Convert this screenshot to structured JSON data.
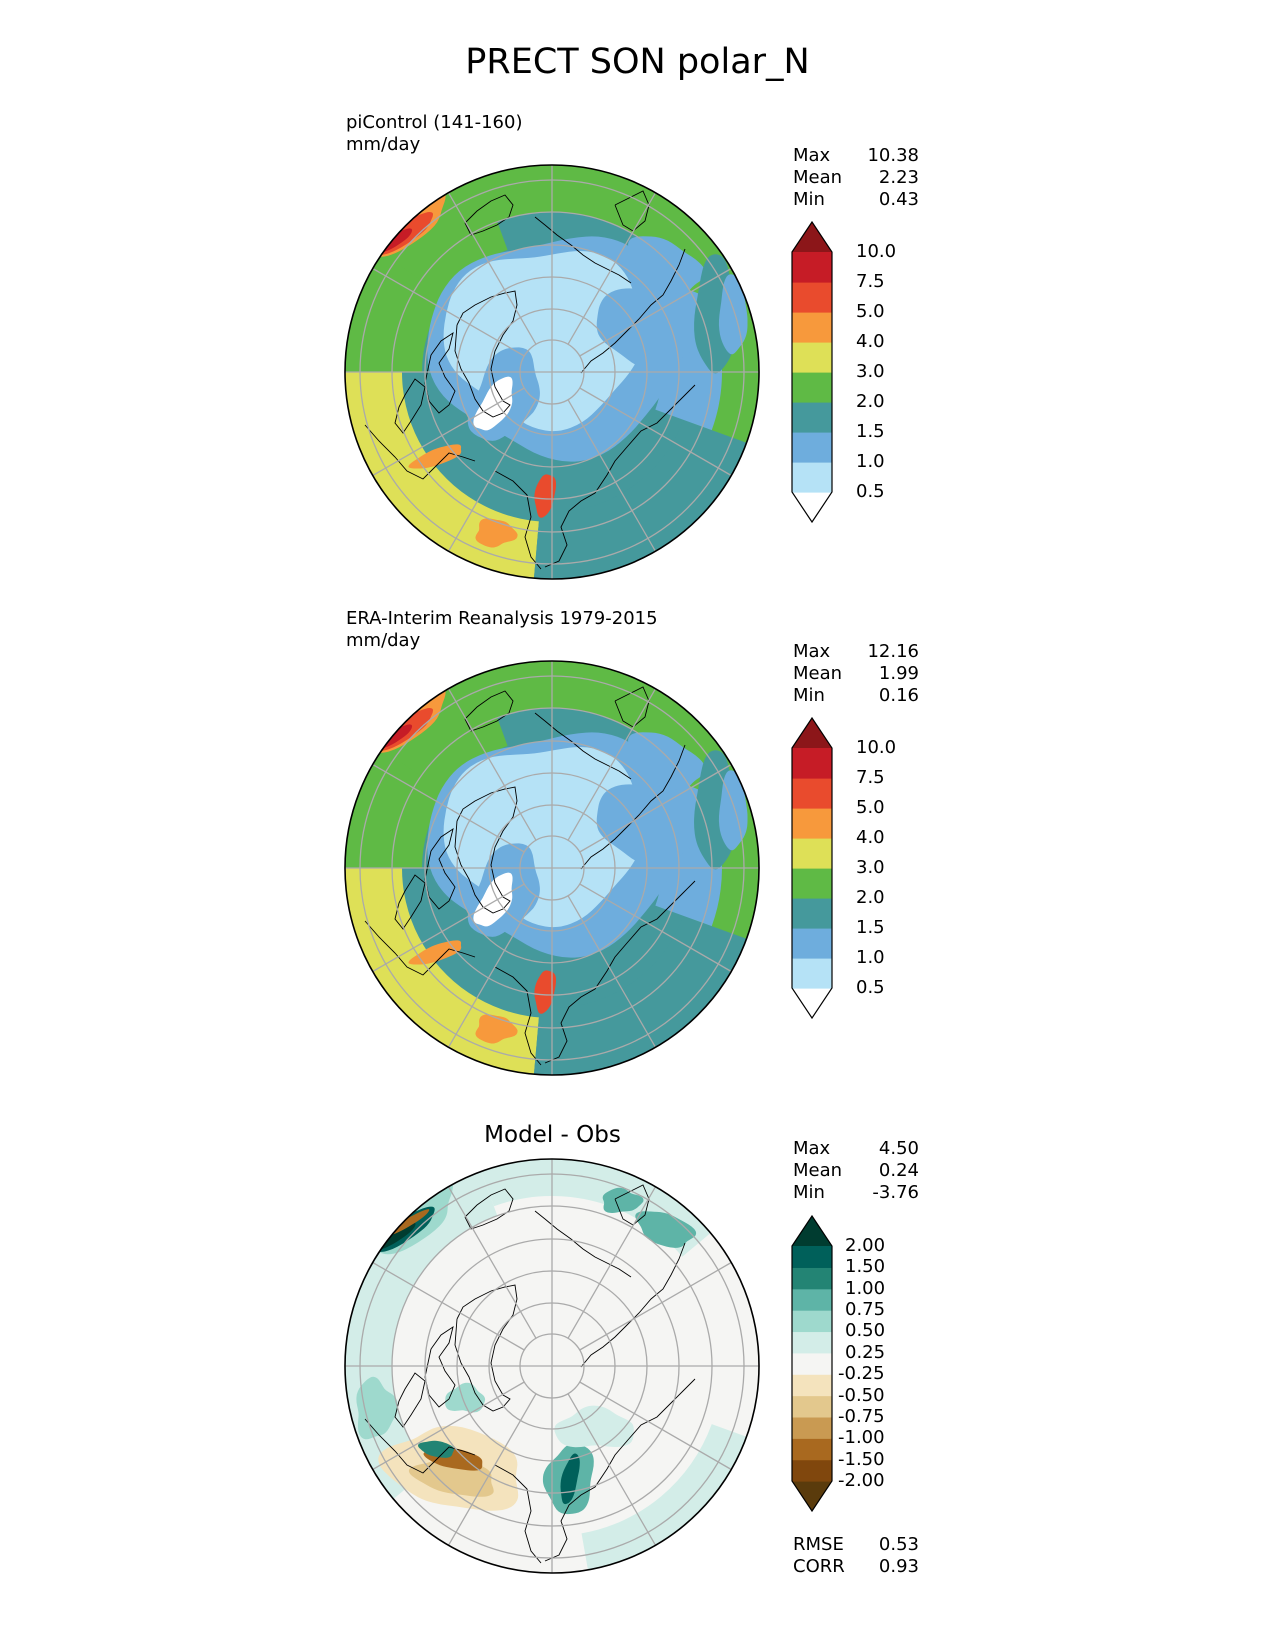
{
  "title": "PRECT SON polar_N",
  "colors": {
    "precip": [
      "#ffffff",
      "#b5e2f6",
      "#6eaddd",
      "#45999c",
      "#5fba45",
      "#dee057",
      "#f7993c",
      "#e94b2d",
      "#c61c26",
      "#8c1619"
    ],
    "diff": [
      "#5a3b0c",
      "#80470d",
      "#a9691f",
      "#c99a52",
      "#e3c88d",
      "#f4e3bd",
      "#f5f5f3",
      "#d3ede8",
      "#9ed9cd",
      "#5eb4a7",
      "#238474",
      "#00605a",
      "#003c30"
    ],
    "grid": "#aaaaaa",
    "coast": "#000000"
  },
  "panels": [
    {
      "name": "model",
      "title_lines": [
        "piControl (141-160)",
        "mm/day"
      ],
      "stats": [
        {
          "label": "Max",
          "value": "10.38"
        },
        {
          "label": "Mean",
          "value": "2.23"
        },
        {
          "label": "Min",
          "value": "0.43"
        }
      ],
      "colorbar": {
        "scale": "precip",
        "levels": [
          "0.5",
          "1.0",
          "1.5",
          "2.0",
          "3.0",
          "4.0",
          "5.0",
          "7.5",
          "10.0"
        ]
      }
    },
    {
      "name": "obs",
      "title_lines": [
        "ERA-Interim Reanalysis 1979-2015",
        "mm/day"
      ],
      "stats": [
        {
          "label": "Max",
          "value": "12.16"
        },
        {
          "label": "Mean",
          "value": "1.99"
        },
        {
          "label": "Min",
          "value": "0.16"
        }
      ],
      "colorbar": {
        "scale": "precip",
        "levels": [
          "0.5",
          "1.0",
          "1.5",
          "2.0",
          "3.0",
          "4.0",
          "5.0",
          "7.5",
          "10.0"
        ]
      }
    },
    {
      "name": "diff",
      "center_title": "Model - Obs",
      "stats": [
        {
          "label": "Max",
          "value": "4.50"
        },
        {
          "label": "Mean",
          "value": "0.24"
        },
        {
          "label": "Min",
          "value": "-3.76"
        }
      ],
      "colorbar": {
        "scale": "diff",
        "levels": [
          "-2.00",
          "-1.50",
          "-1.00",
          "-0.75",
          "-0.50",
          "-0.25",
          "0.25",
          "0.50",
          "0.75",
          "1.00",
          "1.50",
          "2.00"
        ]
      },
      "bottom_stats": [
        {
          "label": "RMSE",
          "value": "0.53"
        },
        {
          "label": "CORR",
          "value": "0.93"
        }
      ]
    }
  ]
}
